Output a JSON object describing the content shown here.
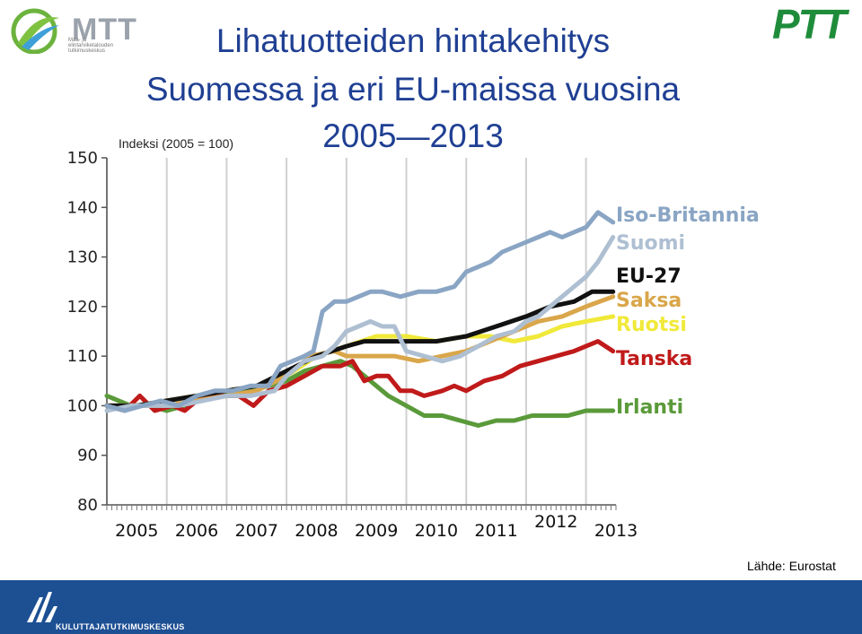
{
  "header": {
    "title_line1": "Lihatuotteiden hintakehitys",
    "title_line2": "Suomessa ja eri EU-maissa vuosina",
    "title_line3": "2005—2013",
    "mtt_logo_text": "MTT",
    "mtt_logo_subtext": "Maa- ja\nelintarviketalouden\ntutkimuskeskus",
    "ptt_logo_text": "PTT"
  },
  "index_label": "Indeksi (2005 = 100)",
  "source_label": "Lähde: Eurostat",
  "footer": {
    "org_text": "KULUTTAJATUTKIMUSKESKUS",
    "color": "#1d4f93"
  },
  "colors": {
    "title": "#1f3f93",
    "mtt_green": "#6cb33e",
    "ptt_green": "#1f8c3b"
  },
  "chart_data": {
    "type": "line",
    "title": "Lihatuotteiden hintakehitys Suomessa ja eri EU-maissa vuosina 2005—2013",
    "ylabel": "Indeksi (2005 = 100)",
    "ylim": [
      80,
      150
    ],
    "yticks": [
      "150",
      "140",
      "130",
      "120",
      "110",
      "100",
      "90",
      "80"
    ],
    "xlim": [
      2005.0,
      2013.5
    ],
    "xticks": [
      "2005",
      "2006",
      "2007",
      "2008",
      "2009",
      "2010",
      "2011",
      "2012",
      "2013"
    ],
    "grid": "vertical",
    "legend_position": "right",
    "series": [
      {
        "name": "Iso-Britannia",
        "color": "#8aa5c4",
        "points": [
          [
            2005.0,
            100
          ],
          [
            2005.3,
            99
          ],
          [
            2005.6,
            100
          ],
          [
            2005.9,
            101
          ],
          [
            2006.2,
            100
          ],
          [
            2006.5,
            102
          ],
          [
            2006.8,
            103
          ],
          [
            2007.1,
            103
          ],
          [
            2007.4,
            104
          ],
          [
            2007.7,
            104
          ],
          [
            2007.9,
            108
          ],
          [
            2008.1,
            109
          ],
          [
            2008.3,
            110
          ],
          [
            2008.45,
            111
          ],
          [
            2008.6,
            119
          ],
          [
            2008.8,
            121
          ],
          [
            2009.0,
            121
          ],
          [
            2009.2,
            122
          ],
          [
            2009.4,
            123
          ],
          [
            2009.6,
            123
          ],
          [
            2009.9,
            122
          ],
          [
            2010.2,
            123
          ],
          [
            2010.5,
            123
          ],
          [
            2010.8,
            124
          ],
          [
            2011.0,
            127
          ],
          [
            2011.2,
            128
          ],
          [
            2011.4,
            129
          ],
          [
            2011.6,
            131
          ],
          [
            2011.8,
            132
          ],
          [
            2012.0,
            133
          ],
          [
            2012.2,
            134
          ],
          [
            2012.4,
            135
          ],
          [
            2012.6,
            134
          ],
          [
            2012.8,
            135
          ],
          [
            2013.0,
            136
          ],
          [
            2013.2,
            139
          ],
          [
            2013.45,
            137
          ]
        ]
      },
      {
        "name": "Suomi",
        "color": "#aebfd2",
        "points": [
          [
            2005.0,
            99
          ],
          [
            2005.4,
            100
          ],
          [
            2005.8,
            100
          ],
          [
            2006.2,
            100
          ],
          [
            2006.6,
            101
          ],
          [
            2007.0,
            102
          ],
          [
            2007.4,
            102
          ],
          [
            2007.8,
            103
          ],
          [
            2008.0,
            106
          ],
          [
            2008.3,
            109
          ],
          [
            2008.6,
            110
          ],
          [
            2008.8,
            112
          ],
          [
            2009.0,
            115
          ],
          [
            2009.2,
            116
          ],
          [
            2009.4,
            117
          ],
          [
            2009.6,
            116
          ],
          [
            2009.8,
            116
          ],
          [
            2010.0,
            111
          ],
          [
            2010.3,
            110
          ],
          [
            2010.6,
            109
          ],
          [
            2010.9,
            110
          ],
          [
            2011.2,
            112
          ],
          [
            2011.5,
            114
          ],
          [
            2011.8,
            115
          ],
          [
            2012.0,
            117
          ],
          [
            2012.2,
            118
          ],
          [
            2012.5,
            121
          ],
          [
            2012.8,
            124
          ],
          [
            2013.0,
            126
          ],
          [
            2013.2,
            129
          ],
          [
            2013.45,
            134
          ]
        ]
      },
      {
        "name": "EU-27",
        "color": "#111111",
        "points": [
          [
            2005.0,
            100
          ],
          [
            2005.5,
            100
          ],
          [
            2006.0,
            101
          ],
          [
            2006.5,
            102
          ],
          [
            2007.0,
            103
          ],
          [
            2007.5,
            104
          ],
          [
            2008.0,
            107
          ],
          [
            2008.5,
            110
          ],
          [
            2009.0,
            112
          ],
          [
            2009.3,
            113
          ],
          [
            2009.6,
            113
          ],
          [
            2010.0,
            113
          ],
          [
            2010.5,
            113
          ],
          [
            2011.0,
            114
          ],
          [
            2011.5,
            116
          ],
          [
            2012.0,
            118
          ],
          [
            2012.4,
            120
          ],
          [
            2012.8,
            121
          ],
          [
            2013.1,
            123
          ],
          [
            2013.45,
            123
          ]
        ]
      },
      {
        "name": "Saksa",
        "color": "#d9a64a",
        "points": [
          [
            2005.0,
            100
          ],
          [
            2005.5,
            100
          ],
          [
            2006.0,
            100
          ],
          [
            2006.5,
            101
          ],
          [
            2007.0,
            102
          ],
          [
            2007.5,
            103
          ],
          [
            2008.0,
            106
          ],
          [
            2008.4,
            110
          ],
          [
            2008.8,
            111
          ],
          [
            2009.0,
            110
          ],
          [
            2009.4,
            110
          ],
          [
            2009.8,
            110
          ],
          [
            2010.2,
            109
          ],
          [
            2010.6,
            110
          ],
          [
            2011.0,
            111
          ],
          [
            2011.4,
            113
          ],
          [
            2011.8,
            115
          ],
          [
            2012.2,
            117
          ],
          [
            2012.6,
            118
          ],
          [
            2013.0,
            120
          ],
          [
            2013.45,
            122
          ]
        ]
      },
      {
        "name": "Ruotsi",
        "color": "#f0e93a",
        "points": [
          [
            2005.0,
            100
          ],
          [
            2005.5,
            100
          ],
          [
            2006.0,
            101
          ],
          [
            2006.5,
            102
          ],
          [
            2007.0,
            103
          ],
          [
            2007.5,
            104
          ],
          [
            2008.0,
            106
          ],
          [
            2008.5,
            110
          ],
          [
            2009.0,
            112
          ],
          [
            2009.5,
            114
          ],
          [
            2010.0,
            114
          ],
          [
            2010.5,
            113
          ],
          [
            2011.0,
            114
          ],
          [
            2011.4,
            114
          ],
          [
            2011.8,
            113
          ],
          [
            2012.2,
            114
          ],
          [
            2012.6,
            116
          ],
          [
            2013.0,
            117
          ],
          [
            2013.45,
            118
          ]
        ]
      },
      {
        "name": "Tanska",
        "color": "#c01a1a",
        "points": [
          [
            2005.0,
            100
          ],
          [
            2005.3,
            99
          ],
          [
            2005.55,
            102
          ],
          [
            2005.8,
            99
          ],
          [
            2006.1,
            100
          ],
          [
            2006.3,
            99
          ],
          [
            2006.6,
            102
          ],
          [
            2006.9,
            102
          ],
          [
            2007.2,
            102
          ],
          [
            2007.45,
            100
          ],
          [
            2007.7,
            103
          ],
          [
            2008.0,
            104
          ],
          [
            2008.3,
            106
          ],
          [
            2008.6,
            108
          ],
          [
            2008.9,
            108
          ],
          [
            2009.1,
            109
          ],
          [
            2009.3,
            105
          ],
          [
            2009.5,
            106
          ],
          [
            2009.7,
            106
          ],
          [
            2009.9,
            103
          ],
          [
            2010.1,
            103
          ],
          [
            2010.3,
            102
          ],
          [
            2010.6,
            103
          ],
          [
            2010.8,
            104
          ],
          [
            2011.0,
            103
          ],
          [
            2011.3,
            105
          ],
          [
            2011.6,
            106
          ],
          [
            2011.9,
            108
          ],
          [
            2012.2,
            109
          ],
          [
            2012.5,
            110
          ],
          [
            2012.8,
            111
          ],
          [
            2013.0,
            112
          ],
          [
            2013.2,
            113
          ],
          [
            2013.45,
            111
          ]
        ]
      },
      {
        "name": "Irlanti",
        "color": "#5a9a3a",
        "points": [
          [
            2005.0,
            102
          ],
          [
            2005.2,
            101
          ],
          [
            2005.4,
            100
          ],
          [
            2005.7,
            100
          ],
          [
            2006.0,
            99
          ],
          [
            2006.3,
            100
          ],
          [
            2006.5,
            102
          ],
          [
            2006.8,
            102
          ],
          [
            2007.1,
            103
          ],
          [
            2007.4,
            103
          ],
          [
            2007.7,
            104
          ],
          [
            2008.0,
            105
          ],
          [
            2008.3,
            107
          ],
          [
            2008.6,
            108
          ],
          [
            2008.9,
            109
          ],
          [
            2009.1,
            108
          ],
          [
            2009.4,
            105
          ],
          [
            2009.7,
            102
          ],
          [
            2010.0,
            100
          ],
          [
            2010.3,
            98
          ],
          [
            2010.6,
            98
          ],
          [
            2010.9,
            97
          ],
          [
            2011.2,
            96
          ],
          [
            2011.5,
            97
          ],
          [
            2011.8,
            97
          ],
          [
            2012.1,
            98
          ],
          [
            2012.4,
            98
          ],
          [
            2012.7,
            98
          ],
          [
            2013.0,
            99
          ],
          [
            2013.45,
            99
          ]
        ]
      }
    ]
  }
}
